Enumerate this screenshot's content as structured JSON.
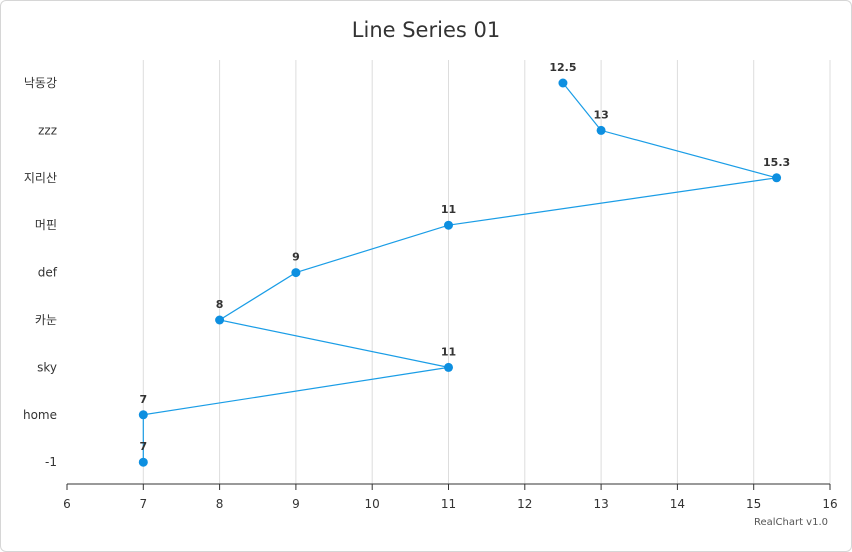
{
  "chart_data": {
    "type": "line",
    "orientation": "horizontal",
    "title": "Line Series 01",
    "categories": [
      "낙동강",
      "zzz",
      "지리산",
      "머핀",
      "def",
      "카눈",
      "sky",
      "home",
      "-1"
    ],
    "series": [
      {
        "values": [
          12.5,
          13,
          15.3,
          11,
          9,
          8,
          11,
          7,
          7
        ]
      }
    ],
    "data_labels": [
      "12.5",
      "13",
      "15.3",
      "11",
      "9",
      "8",
      "11",
      "7",
      "7"
    ],
    "value_axis": {
      "min": 6,
      "max": 16,
      "ticks": [
        "6",
        "7",
        "8",
        "9",
        "10",
        "11",
        "12",
        "13",
        "14",
        "15",
        "16"
      ]
    },
    "grid": true,
    "legend": "none",
    "colors": {
      "line": "#1a9de6",
      "point": "#0d8fe0",
      "grid": "#dddddd",
      "axis": "#333333",
      "text": "#333333"
    }
  },
  "credit": "RealChart v1.0"
}
